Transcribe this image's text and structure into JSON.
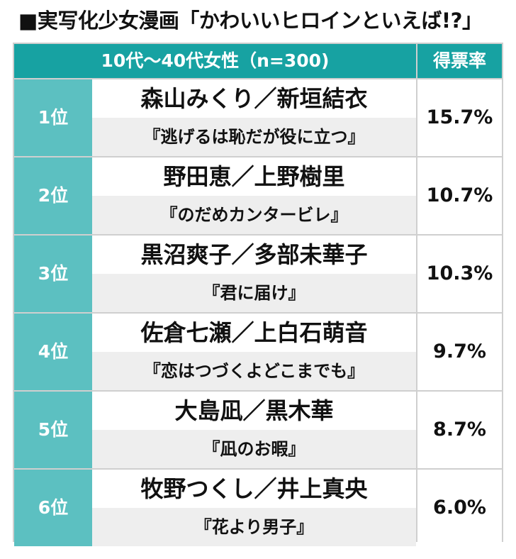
{
  "title": "■実写化少女漫画「かわいいヒロインといえば!?」",
  "header": {
    "group": "10代〜40代女性（n=300)",
    "share": "得票率"
  },
  "chart_data": {
    "type": "table",
    "title": "■実写化少女漫画「かわいいヒロインといえば!?」",
    "columns": [
      "10代〜40代女性（n=300)",
      "得票率"
    ],
    "rows": [
      {
        "rank": "1位",
        "heroine": "森山みくり／新垣結衣",
        "work": "『逃げるは恥だが役に立つ』",
        "share_label": "15.7%",
        "share": 15.7
      },
      {
        "rank": "2位",
        "heroine": "野田恵／上野樹里",
        "work": "『のだめカンタービレ』",
        "share_label": "10.7%",
        "share": 10.7
      },
      {
        "rank": "3位",
        "heroine": "黒沼爽子／多部未華子",
        "work": "『君に届け』",
        "share_label": "10.3%",
        "share": 10.3
      },
      {
        "rank": "4位",
        "heroine": "佐倉七瀬／上白石萌音",
        "work": "『恋はつづくよどこまでも』",
        "share_label": "9.7%",
        "share": 9.7
      },
      {
        "rank": "5位",
        "heroine": "大島凪／黒木華",
        "work": "『凪のお暇』",
        "share_label": "8.7%",
        "share": 8.7
      },
      {
        "rank": "6位",
        "heroine": "牧野つくし／井上真央",
        "work": "『花より男子』",
        "share_label": "6.0%",
        "share": 6.0
      }
    ]
  }
}
